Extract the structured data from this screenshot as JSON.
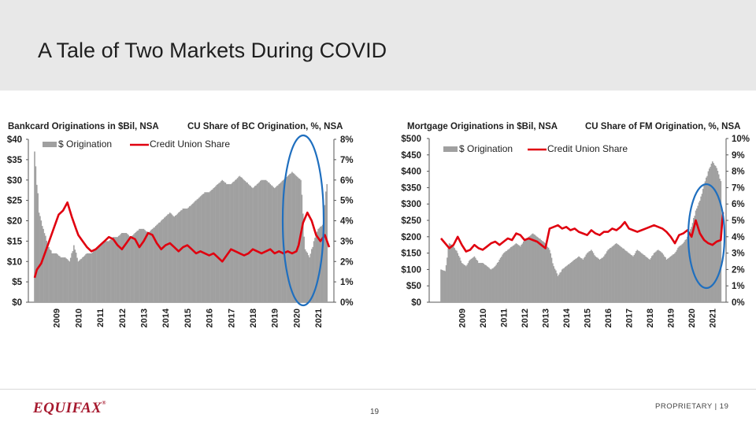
{
  "slide": {
    "title": "A Tale of Two Markets During COVID",
    "page_number": "19",
    "footer_right": "PROPRIETARY  |  19",
    "logo_text": "EQUIFAX",
    "logo_mark": "®"
  },
  "colors": {
    "bar": "#a0a0a0",
    "bar_dark": "#111111",
    "line": "#e0000f",
    "highlight": "#1f6fbf"
  },
  "chart_data": [
    {
      "type": "bar",
      "title": "Bankcard Originations in $Bil, NSA",
      "title2": "CU Share of BC Origination, %, NSA",
      "legend": [
        "$ Origination",
        "Credit Union Share"
      ],
      "x_tick_labels": [
        "2009",
        "2010",
        "2011",
        "2012",
        "2013",
        "2014",
        "2015",
        "2016",
        "2017",
        "2018",
        "2019",
        "2020",
        "2021"
      ],
      "y_ticks": [
        "$40",
        "$35",
        "$30",
        "$25",
        "$20",
        "$15",
        "$10",
        "$5",
        "$0"
      ],
      "y2_ticks": [
        "8%",
        "7%",
        "6%",
        "5%",
        "4%",
        "3%",
        "2%",
        "1%",
        "0%"
      ],
      "ylim": [
        0,
        40
      ],
      "y2lim": [
        0,
        8
      ],
      "x_range": [
        2008.0,
        2021.5
      ],
      "series": [
        {
          "name": "$ Origination",
          "type": "bar",
          "x": [
            2008.0,
            2008.2,
            2008.4,
            2008.6,
            2008.8,
            2009.0,
            2009.2,
            2009.4,
            2009.6,
            2009.8,
            2010.0,
            2010.2,
            2010.4,
            2010.6,
            2010.8,
            2011.0,
            2011.2,
            2011.4,
            2011.6,
            2011.8,
            2012.0,
            2012.2,
            2012.4,
            2012.6,
            2012.8,
            2013.0,
            2013.2,
            2013.4,
            2013.6,
            2013.8,
            2014.0,
            2014.2,
            2014.4,
            2014.6,
            2014.8,
            2015.0,
            2015.2,
            2015.4,
            2015.6,
            2015.8,
            2016.0,
            2016.2,
            2016.4,
            2016.6,
            2016.8,
            2017.0,
            2017.2,
            2017.4,
            2017.6,
            2017.8,
            2018.0,
            2018.2,
            2018.4,
            2018.6,
            2018.8,
            2019.0,
            2019.2,
            2019.4,
            2019.6,
            2019.8,
            2020.0,
            2020.2,
            2020.4,
            2020.6,
            2020.8,
            2021.0,
            2021.2,
            2021.4
          ],
          "values": [
            37,
            22,
            18,
            14,
            12,
            12,
            11,
            11,
            10,
            14,
            10,
            11,
            12,
            12,
            13,
            14,
            15,
            15,
            16,
            16,
            17,
            17,
            16,
            17,
            18,
            18,
            17,
            18,
            19,
            20,
            21,
            22,
            21,
            22,
            23,
            23,
            24,
            25,
            26,
            27,
            27,
            28,
            29,
            30,
            29,
            29,
            30,
            31,
            30,
            29,
            28,
            29,
            30,
            30,
            29,
            28,
            29,
            30,
            31,
            32,
            31,
            30,
            13,
            11,
            15,
            18,
            19,
            29
          ]
        },
        {
          "name": "Credit Union Share",
          "type": "line",
          "x": [
            2008.0,
            2008.1,
            2008.3,
            2008.5,
            2008.7,
            2008.9,
            2009.1,
            2009.3,
            2009.5,
            2009.7,
            2009.9,
            2010.0,
            2010.2,
            2010.4,
            2010.6,
            2010.8,
            2011.0,
            2011.2,
            2011.4,
            2011.6,
            2011.8,
            2012.0,
            2012.2,
            2012.4,
            2012.6,
            2012.8,
            2013.0,
            2013.2,
            2013.4,
            2013.6,
            2013.8,
            2014.0,
            2014.2,
            2014.4,
            2014.6,
            2014.8,
            2015.0,
            2015.2,
            2015.4,
            2015.6,
            2015.8,
            2016.0,
            2016.2,
            2016.4,
            2016.6,
            2016.8,
            2017.0,
            2017.2,
            2017.4,
            2017.6,
            2017.8,
            2018.0,
            2018.2,
            2018.4,
            2018.6,
            2018.8,
            2019.0,
            2019.2,
            2019.4,
            2019.6,
            2019.8,
            2020.0,
            2020.1,
            2020.3,
            2020.5,
            2020.7,
            2020.9,
            2021.1,
            2021.3,
            2021.5
          ],
          "values": [
            1.2,
            1.6,
            1.9,
            2.5,
            3.1,
            3.7,
            4.3,
            4.5,
            4.9,
            4.2,
            3.6,
            3.3,
            3.0,
            2.7,
            2.5,
            2.6,
            2.8,
            3.0,
            3.2,
            3.1,
            2.8,
            2.6,
            2.9,
            3.2,
            3.1,
            2.7,
            3.0,
            3.4,
            3.3,
            2.9,
            2.6,
            2.8,
            2.9,
            2.7,
            2.5,
            2.7,
            2.8,
            2.6,
            2.4,
            2.5,
            2.4,
            2.3,
            2.4,
            2.2,
            2.0,
            2.3,
            2.6,
            2.5,
            2.4,
            2.3,
            2.4,
            2.6,
            2.5,
            2.4,
            2.5,
            2.6,
            2.4,
            2.5,
            2.4,
            2.5,
            2.4,
            2.5,
            2.8,
            3.9,
            4.4,
            4.0,
            3.3,
            3.0,
            3.3,
            2.7
          ]
        }
      ]
    },
    {
      "type": "bar",
      "title": "Mortgage Originations in $Bil, NSA",
      "title2": "CU Share of FM Origination, %, NSA",
      "legend": [
        "$ Origination",
        "Credit Union Share"
      ],
      "x_tick_labels": [
        "2009",
        "2010",
        "2011",
        "2012",
        "2013",
        "2014",
        "2015",
        "2016",
        "2017",
        "2018",
        "2019",
        "2020",
        "2021"
      ],
      "y_ticks": [
        "$500",
        "$450",
        "$400",
        "$350",
        "$300",
        "$250",
        "$200",
        "$150",
        "$100",
        "$50",
        "$0"
      ],
      "y2_ticks": [
        "10%",
        "9%",
        "8%",
        "7%",
        "6%",
        "5%",
        "4%",
        "3%",
        "2%",
        "1%",
        "0%"
      ],
      "ylim": [
        0,
        500
      ],
      "y2lim": [
        0,
        10
      ],
      "x_range": [
        2008.0,
        2021.5
      ],
      "series": [
        {
          "name": "$ Origination",
          "type": "bar",
          "x": [
            2008.0,
            2008.2,
            2008.4,
            2008.6,
            2008.8,
            2009.0,
            2009.2,
            2009.4,
            2009.6,
            2009.8,
            2010.0,
            2010.2,
            2010.4,
            2010.6,
            2010.8,
            2011.0,
            2011.2,
            2011.4,
            2011.6,
            2011.8,
            2012.0,
            2012.2,
            2012.4,
            2012.6,
            2012.8,
            2013.0,
            2013.2,
            2013.4,
            2013.6,
            2013.8,
            2014.0,
            2014.2,
            2014.4,
            2014.6,
            2014.8,
            2015.0,
            2015.2,
            2015.4,
            2015.6,
            2015.8,
            2016.0,
            2016.2,
            2016.4,
            2016.6,
            2016.8,
            2017.0,
            2017.2,
            2017.4,
            2017.6,
            2017.8,
            2018.0,
            2018.2,
            2018.4,
            2018.6,
            2018.8,
            2019.0,
            2019.2,
            2019.4,
            2019.6,
            2019.8,
            2020.0,
            2020.2,
            2020.4,
            2020.6,
            2020.8,
            2021.0,
            2021.2,
            2021.4
          ],
          "values": [
            100,
            95,
            180,
            170,
            150,
            120,
            110,
            130,
            140,
            120,
            120,
            110,
            100,
            110,
            130,
            150,
            160,
            170,
            180,
            170,
            190,
            200,
            210,
            200,
            190,
            180,
            160,
            110,
            80,
            100,
            110,
            120,
            130,
            140,
            130,
            150,
            160,
            140,
            130,
            140,
            160,
            170,
            180,
            170,
            160,
            150,
            140,
            160,
            150,
            140,
            130,
            150,
            160,
            150,
            130,
            140,
            150,
            170,
            180,
            200,
            230,
            280,
            310,
            360,
            400,
            430,
            410,
            370
          ]
        },
        {
          "name": "Credit Union Share",
          "type": "line",
          "x": [
            2008.0,
            2008.2,
            2008.4,
            2008.6,
            2008.8,
            2009.0,
            2009.2,
            2009.4,
            2009.6,
            2009.8,
            2010.0,
            2010.2,
            2010.4,
            2010.6,
            2010.8,
            2011.0,
            2011.2,
            2011.4,
            2011.6,
            2011.8,
            2012.0,
            2012.2,
            2012.4,
            2012.6,
            2012.8,
            2013.0,
            2013.2,
            2013.4,
            2013.6,
            2013.8,
            2014.0,
            2014.2,
            2014.4,
            2014.6,
            2014.8,
            2015.0,
            2015.2,
            2015.4,
            2015.6,
            2015.8,
            2016.0,
            2016.2,
            2016.4,
            2016.6,
            2016.8,
            2017.0,
            2017.2,
            2017.4,
            2017.6,
            2017.8,
            2018.0,
            2018.2,
            2018.4,
            2018.6,
            2018.8,
            2019.0,
            2019.2,
            2019.4,
            2019.6,
            2019.8,
            2020.0,
            2020.2,
            2020.4,
            2020.6,
            2020.8,
            2021.0,
            2021.2,
            2021.4,
            2021.5
          ],
          "values": [
            3.9,
            3.6,
            3.3,
            3.5,
            4.0,
            3.5,
            3.1,
            3.2,
            3.5,
            3.3,
            3.2,
            3.4,
            3.6,
            3.7,
            3.5,
            3.7,
            3.9,
            3.8,
            4.2,
            4.1,
            3.8,
            3.9,
            3.8,
            3.7,
            3.5,
            3.3,
            4.5,
            4.6,
            4.7,
            4.5,
            4.6,
            4.4,
            4.5,
            4.3,
            4.2,
            4.1,
            4.4,
            4.2,
            4.1,
            4.3,
            4.3,
            4.5,
            4.4,
            4.6,
            4.9,
            4.5,
            4.4,
            4.3,
            4.4,
            4.5,
            4.6,
            4.7,
            4.6,
            4.5,
            4.3,
            4.0,
            3.6,
            4.1,
            4.2,
            4.4,
            4.0,
            5.0,
            4.2,
            3.8,
            3.6,
            3.5,
            3.7,
            3.8,
            5.5
          ]
        }
      ]
    }
  ]
}
